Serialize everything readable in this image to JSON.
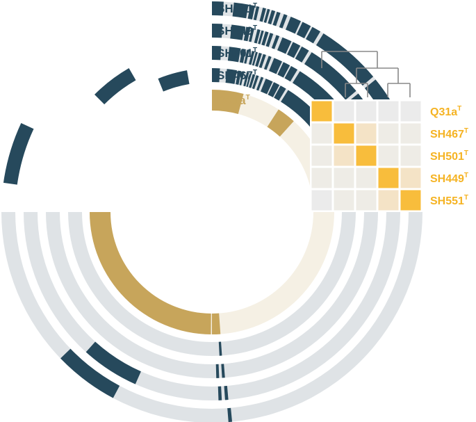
{
  "palette": {
    "background_track": "#dfe3e6",
    "ring_mark": "#26495c",
    "query_mark": "#c7a55b",
    "query_track": "#f5f0e4",
    "label_dark": "#26495c",
    "label_query": "#c7a55b",
    "label_heat": "#f5b323",
    "tree_stroke": "#888888",
    "heat_diag": "#f8bd3c",
    "heat_mid": "#f4e3c6",
    "heat_low": "#eeece6",
    "heat_none": "#ebebeb"
  },
  "rings": [
    {
      "label": "SH551",
      "sup": "T",
      "type": "genome",
      "segments": [
        [
          0,
          3.2
        ],
        [
          6,
          10
        ],
        [
          10.5,
          11.8
        ],
        [
          12.2,
          13
        ],
        [
          14,
          14.9
        ],
        [
          15.3,
          16
        ],
        [
          16.5,
          17.5
        ],
        [
          18,
          19
        ],
        [
          20,
          21
        ],
        [
          22,
          25
        ],
        [
          25.5,
          28
        ],
        [
          28.5,
          31
        ],
        [
          32,
          50
        ],
        [
          51,
          68
        ],
        [
          72,
          84
        ],
        [
          85,
          90
        ],
        [
          174.5,
          175.5
        ],
        [
          208,
          226
        ],
        [
          278,
          295
        ]
      ]
    },
    {
      "label": "SH449",
      "sup": "T",
      "type": "genome",
      "segments": [
        [
          0,
          3.2
        ],
        [
          6,
          10
        ],
        [
          10.5,
          11.8
        ],
        [
          12.2,
          13
        ],
        [
          14,
          14.9
        ],
        [
          15.3,
          16
        ],
        [
          16.5,
          17.5
        ],
        [
          18,
          19
        ],
        [
          20,
          21
        ],
        [
          22,
          25
        ],
        [
          25.5,
          28
        ],
        [
          28.5,
          31
        ],
        [
          32,
          50
        ],
        [
          51,
          68
        ],
        [
          72,
          84
        ],
        [
          85,
          90
        ],
        [
          175,
          176
        ],
        [
          177,
          178
        ],
        [
          204,
          222
        ]
      ]
    },
    {
      "label": "SH501",
      "sup": "T",
      "type": "genome",
      "segments": [
        [
          0,
          3.2
        ],
        [
          6,
          10
        ],
        [
          10.5,
          11.8
        ],
        [
          12.2,
          13
        ],
        [
          14,
          14.9
        ],
        [
          15.3,
          16
        ],
        [
          16.5,
          17.5
        ],
        [
          18,
          19
        ],
        [
          20,
          21
        ],
        [
          22,
          25
        ],
        [
          25.5,
          28
        ],
        [
          28.5,
          31
        ],
        [
          32,
          50
        ],
        [
          51,
          68
        ],
        [
          72,
          84
        ],
        [
          85,
          90
        ],
        [
          175.5,
          176.5
        ],
        [
          177.5,
          178.5
        ],
        [
          315,
          330
        ]
      ]
    },
    {
      "label": "SH467",
      "sup": "T",
      "type": "genome",
      "segments": [
        [
          0,
          3.2
        ],
        [
          6,
          10
        ],
        [
          10.5,
          11.8
        ],
        [
          12.2,
          13
        ],
        [
          14,
          14.9
        ],
        [
          15.3,
          16
        ],
        [
          16.5,
          17.5
        ],
        [
          18,
          19
        ],
        [
          20,
          21
        ],
        [
          22,
          25
        ],
        [
          25.5,
          28
        ],
        [
          28.5,
          31
        ],
        [
          32,
          50
        ],
        [
          51,
          68
        ],
        [
          72,
          84
        ],
        [
          85,
          90
        ],
        [
          176,
          177
        ],
        [
          338,
          350
        ]
      ]
    },
    {
      "label": "Q31a",
      "sup": "T",
      "type": "query",
      "segments": [
        [
          0,
          15
        ],
        [
          33,
          42
        ],
        [
          176,
          180
        ],
        [
          180.5,
          270
        ]
      ]
    }
  ],
  "heatmap": {
    "labels": [
      {
        "text": "Q31a",
        "sup": "T"
      },
      {
        "text": "SH467",
        "sup": "T"
      },
      {
        "text": "SH501",
        "sup": "T"
      },
      {
        "text": "SH449",
        "sup": "T"
      },
      {
        "text": "SH551",
        "sup": "T"
      }
    ],
    "levels": [
      [
        "diag",
        "none",
        "none",
        "none",
        "none"
      ],
      [
        "low",
        "diag",
        "mid",
        "low",
        "low"
      ],
      [
        "low",
        "mid",
        "diag",
        "low",
        "low"
      ],
      [
        "low",
        "low",
        "low",
        "diag",
        "mid"
      ],
      [
        "none",
        "low",
        "low",
        "mid",
        "diag"
      ]
    ]
  }
}
